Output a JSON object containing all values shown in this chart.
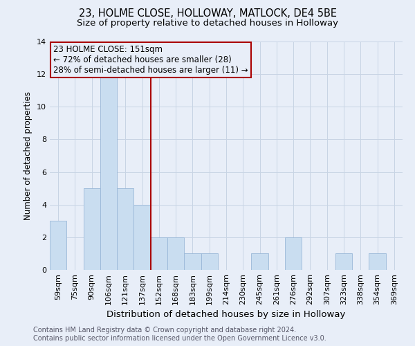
{
  "title": "23, HOLME CLOSE, HOLLOWAY, MATLOCK, DE4 5BE",
  "subtitle": "Size of property relative to detached houses in Holloway",
  "xlabel": "Distribution of detached houses by size in Holloway",
  "ylabel": "Number of detached properties",
  "bar_labels": [
    "59sqm",
    "75sqm",
    "90sqm",
    "106sqm",
    "121sqm",
    "137sqm",
    "152sqm",
    "168sqm",
    "183sqm",
    "199sqm",
    "214sqm",
    "230sqm",
    "245sqm",
    "261sqm",
    "276sqm",
    "292sqm",
    "307sqm",
    "323sqm",
    "338sqm",
    "354sqm",
    "369sqm"
  ],
  "bar_values": [
    3,
    0,
    5,
    12,
    5,
    4,
    2,
    2,
    1,
    1,
    0,
    0,
    1,
    0,
    2,
    0,
    0,
    1,
    0,
    1,
    0
  ],
  "bar_color": "#c9ddf0",
  "bar_edgecolor": "#9ab8d8",
  "highlight_line_color": "#aa0000",
  "annotation_line1": "23 HOLME CLOSE: 151sqm",
  "annotation_line2": "← 72% of detached houses are smaller (28)",
  "annotation_line3": "28% of semi-detached houses are larger (11) →",
  "annotation_box_edgecolor": "#aa0000",
  "ylim": [
    0,
    14
  ],
  "yticks": [
    0,
    2,
    4,
    6,
    8,
    10,
    12,
    14
  ],
  "grid_color": "#c8d4e4",
  "bg_color": "#e8eef8",
  "footer_line1": "Contains HM Land Registry data © Crown copyright and database right 2024.",
  "footer_line2": "Contains public sector information licensed under the Open Government Licence v3.0.",
  "title_fontsize": 10.5,
  "subtitle_fontsize": 9.5,
  "xlabel_fontsize": 9.5,
  "ylabel_fontsize": 8.5,
  "tick_fontsize": 8,
  "footer_fontsize": 7.0,
  "annotation_fontsize": 8.5
}
